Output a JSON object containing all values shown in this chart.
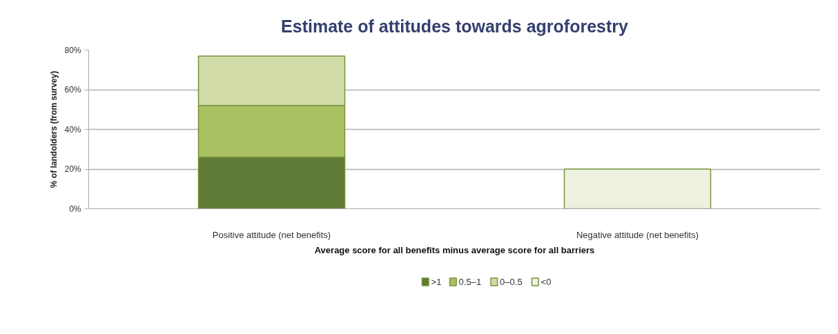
{
  "chart_data": {
    "type": "bar",
    "title": "Estimate of attitudes towards agroforestry",
    "xlabel": "Average score for all benefits minus average score for all barriers",
    "ylabel": "% of landolders (from survey)",
    "categories": [
      "Positive attitude (net benefits)",
      "Negative attitude (net benefits)"
    ],
    "series": [
      {
        "name": ">1",
        "color": "#5f7a35",
        "values": [
          26,
          null
        ]
      },
      {
        "name": "0.5–1",
        "color": "#a9c163",
        "values": [
          26,
          null
        ]
      },
      {
        "name": "0–0.5",
        "color": "#d1dba8",
        "values": [
          25,
          null
        ]
      },
      {
        "name": "<0",
        "color": "#eef1e0",
        "values": [
          null,
          20
        ]
      }
    ],
    "stacked": true,
    "ylim": [
      0,
      80
    ],
    "yticks": [
      {
        "value": 0,
        "label": "0%"
      },
      {
        "value": 20,
        "label": "20%"
      },
      {
        "value": 40,
        "label": "40%"
      },
      {
        "value": 60,
        "label": "60%"
      },
      {
        "value": 80,
        "label": "80%"
      }
    ],
    "grid": "y",
    "legend": "bottom"
  }
}
